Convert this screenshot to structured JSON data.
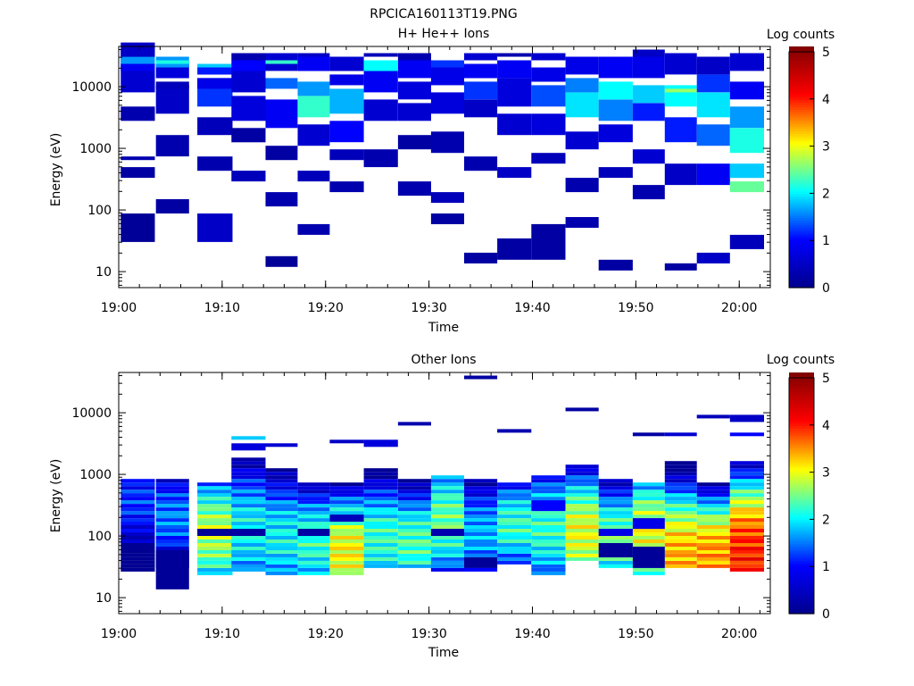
{
  "figure_title": "RPCICA160113T19.PNG",
  "colors": {
    "colormap": [
      "#00008c",
      "#0000ff",
      "#00ffff",
      "#ffff00",
      "#ff0000",
      "#7f0000"
    ]
  },
  "chart_data": [
    {
      "type": "heatmap",
      "title": "H+ He++ Ions",
      "xlabel": "Time",
      "ylabel": "Energy (eV)",
      "x_tick_labels": [
        "19:00",
        "19:10",
        "19:20",
        "19:30",
        "19:40",
        "19:50",
        "20:00"
      ],
      "x_tick_minutes": [
        0,
        10,
        20,
        30,
        40,
        50,
        60
      ],
      "xlim_minutes": [
        0,
        63
      ],
      "y_scale": "log",
      "ylim": [
        5.5,
        45000
      ],
      "y_tick_labels": [
        "10",
        "100",
        "1000",
        "10000"
      ],
      "y_tick_values": [
        10,
        100,
        1000,
        10000
      ],
      "colorbar": {
        "label": "Log counts",
        "range": [
          0,
          5
        ],
        "tick_labels": [
          "0",
          "1",
          "2",
          "3",
          "4",
          "5"
        ]
      },
      "time_bins_minutes": [
        [
          0.2,
          3.5
        ],
        [
          3.6,
          6.8
        ],
        [
          7.6,
          11.0
        ],
        [
          10.9,
          14.2
        ],
        [
          14.2,
          17.3
        ],
        [
          17.3,
          20.4
        ],
        [
          20.4,
          23.7
        ],
        [
          23.7,
          27.0
        ],
        [
          27.0,
          30.2
        ],
        [
          30.2,
          33.4
        ],
        [
          33.4,
          36.6
        ],
        [
          36.6,
          39.9
        ],
        [
          39.9,
          43.2
        ],
        [
          43.2,
          46.4
        ],
        [
          46.4,
          49.7
        ],
        [
          49.7,
          52.8
        ],
        [
          52.8,
          55.9
        ],
        [
          55.9,
          59.1
        ],
        [
          59.1,
          62.4
        ]
      ],
      "energy_range_eV": [
        8,
        40000
      ],
      "energy_bins": 64,
      "cells": [
        [
          0,
          10,
          8,
          0.1
        ],
        [
          0,
          28,
          3,
          0.2
        ],
        [
          0,
          44,
          4,
          0.3
        ],
        [
          0,
          52,
          8,
          0.6
        ],
        [
          0,
          58,
          6,
          0.9
        ],
        [
          0,
          60,
          2,
          1.6
        ],
        [
          0,
          62,
          4,
          0.5
        ],
        [
          0,
          33,
          1,
          0.3
        ],
        [
          1,
          18,
          4,
          0.2
        ],
        [
          1,
          34,
          6,
          0.3
        ],
        [
          1,
          46,
          8,
          0.5
        ],
        [
          1,
          56,
          4,
          0.7
        ],
        [
          1,
          59,
          3,
          1.6
        ],
        [
          1,
          60,
          1,
          2.1
        ],
        [
          1,
          53,
          2,
          0.4
        ],
        [
          2,
          10,
          8,
          0.5
        ],
        [
          2,
          30,
          4,
          0.3
        ],
        [
          2,
          40,
          5,
          0.4
        ],
        [
          2,
          48,
          8,
          1.2
        ],
        [
          2,
          53,
          3,
          0.8
        ],
        [
          2,
          57,
          2,
          1.1
        ],
        [
          2,
          59,
          1,
          1.8
        ],
        [
          3,
          27,
          3,
          0.4
        ],
        [
          3,
          38,
          4,
          0.2
        ],
        [
          3,
          44,
          7,
          0.7
        ],
        [
          3,
          52,
          6,
          0.6
        ],
        [
          3,
          58,
          3,
          1.0
        ],
        [
          3,
          61,
          2,
          0.3
        ],
        [
          4,
          3,
          3,
          0.1
        ],
        [
          4,
          20,
          4,
          0.3
        ],
        [
          4,
          33,
          4,
          0.2
        ],
        [
          4,
          42,
          8,
          0.9
        ],
        [
          4,
          53,
          3,
          1.4
        ],
        [
          4,
          58,
          5,
          0.6
        ],
        [
          4,
          60,
          1,
          2.2
        ],
        [
          5,
          12,
          3,
          0.3
        ],
        [
          5,
          27,
          3,
          0.4
        ],
        [
          5,
          37,
          6,
          0.6
        ],
        [
          5,
          45,
          6,
          2.2
        ],
        [
          5,
          51,
          4,
          1.6
        ],
        [
          5,
          58,
          4,
          0.9
        ],
        [
          5,
          62,
          1,
          0.5
        ],
        [
          6,
          24,
          3,
          0.3
        ],
        [
          6,
          33,
          3,
          0.4
        ],
        [
          6,
          38,
          6,
          1.0
        ],
        [
          6,
          46,
          7,
          1.7
        ],
        [
          6,
          54,
          3,
          0.8
        ],
        [
          6,
          58,
          4,
          0.6
        ],
        [
          7,
          31,
          5,
          0.3
        ],
        [
          7,
          44,
          6,
          0.6
        ],
        [
          7,
          52,
          6,
          0.9
        ],
        [
          7,
          58,
          3,
          2.0
        ],
        [
          7,
          62,
          1,
          0.4
        ],
        [
          8,
          23,
          4,
          0.3
        ],
        [
          8,
          36,
          4,
          0.2
        ],
        [
          8,
          44,
          5,
          0.6
        ],
        [
          8,
          50,
          5,
          0.7
        ],
        [
          8,
          56,
          5,
          0.9
        ],
        [
          8,
          61,
          2,
          0.3
        ],
        [
          9,
          15,
          3,
          0.2
        ],
        [
          9,
          21,
          3,
          0.4
        ],
        [
          9,
          35,
          6,
          0.3
        ],
        [
          9,
          46,
          6,
          0.7
        ],
        [
          9,
          54,
          5,
          0.8
        ],
        [
          9,
          59,
          2,
          1.2
        ],
        [
          10,
          4,
          3,
          0.2
        ],
        [
          10,
          30,
          4,
          0.3
        ],
        [
          10,
          45,
          5,
          0.5
        ],
        [
          10,
          50,
          5,
          1.2
        ],
        [
          10,
          56,
          4,
          0.9
        ],
        [
          10,
          61,
          2,
          0.6
        ],
        [
          11,
          5,
          6,
          0.2
        ],
        [
          11,
          28,
          3,
          0.5
        ],
        [
          11,
          40,
          6,
          0.6
        ],
        [
          11,
          48,
          8,
          0.7
        ],
        [
          11,
          56,
          5,
          0.9
        ],
        [
          11,
          62,
          1,
          0.3
        ],
        [
          12,
          5,
          10,
          0.2
        ],
        [
          12,
          32,
          3,
          0.4
        ],
        [
          12,
          40,
          6,
          0.7
        ],
        [
          12,
          48,
          6,
          1.3
        ],
        [
          12,
          55,
          4,
          0.8
        ],
        [
          12,
          61,
          2,
          0.6
        ],
        [
          13,
          14,
          3,
          0.3
        ],
        [
          13,
          24,
          4,
          0.3
        ],
        [
          13,
          36,
          5,
          0.6
        ],
        [
          13,
          45,
          7,
          1.9
        ],
        [
          13,
          52,
          4,
          1.5
        ],
        [
          13,
          57,
          5,
          0.8
        ],
        [
          14,
          2,
          3,
          0.2
        ],
        [
          14,
          28,
          3,
          0.4
        ],
        [
          14,
          38,
          5,
          0.7
        ],
        [
          14,
          44,
          6,
          1.5
        ],
        [
          14,
          50,
          5,
          2.0
        ],
        [
          14,
          56,
          6,
          0.9
        ],
        [
          15,
          22,
          4,
          0.3
        ],
        [
          15,
          32,
          4,
          0.6
        ],
        [
          15,
          44,
          5,
          1.1
        ],
        [
          15,
          49,
          5,
          1.8
        ],
        [
          15,
          56,
          6,
          0.8
        ],
        [
          15,
          62,
          2,
          0.5
        ],
        [
          16,
          2,
          2,
          0.2
        ],
        [
          16,
          26,
          6,
          0.5
        ],
        [
          16,
          38,
          7,
          1.1
        ],
        [
          16,
          48,
          6,
          2.0
        ],
        [
          16,
          52,
          1,
          2.6
        ],
        [
          16,
          57,
          6,
          0.6
        ],
        [
          17,
          4,
          3,
          0.5
        ],
        [
          17,
          26,
          6,
          0.9
        ],
        [
          17,
          37,
          6,
          1.4
        ],
        [
          17,
          45,
          7,
          1.9
        ],
        [
          17,
          52,
          5,
          1.2
        ],
        [
          17,
          57,
          5,
          0.5
        ],
        [
          18,
          8,
          4,
          0.4
        ],
        [
          18,
          24,
          3,
          2.4
        ],
        [
          18,
          28,
          4,
          1.8
        ],
        [
          18,
          35,
          7,
          2.1
        ],
        [
          18,
          42,
          6,
          1.6
        ],
        [
          18,
          50,
          5,
          0.9
        ],
        [
          18,
          58,
          5,
          0.6
        ]
      ]
    },
    {
      "type": "heatmap",
      "title": "Other Ions",
      "xlabel": "Time",
      "ylabel": "Energy (eV)",
      "x_tick_labels": [
        "19:00",
        "19:10",
        "19:20",
        "19:30",
        "19:40",
        "19:50",
        "20:00"
      ],
      "x_tick_minutes": [
        0,
        10,
        20,
        30,
        40,
        50,
        60
      ],
      "xlim_minutes": [
        0,
        63
      ],
      "y_scale": "log",
      "ylim": [
        5.5,
        45000
      ],
      "y_tick_labels": [
        "10",
        "100",
        "1000",
        "10000"
      ],
      "y_tick_values": [
        10,
        100,
        1000,
        10000
      ],
      "colorbar": {
        "label": "Log counts",
        "range": [
          0,
          5
        ],
        "tick_labels": [
          "0",
          "1",
          "2",
          "3",
          "4",
          "5"
        ]
      },
      "time_bins_minutes": [
        [
          0.2,
          3.5
        ],
        [
          3.6,
          6.8
        ],
        [
          7.6,
          11.0
        ],
        [
          10.9,
          14.2
        ],
        [
          14.2,
          17.3
        ],
        [
          17.3,
          20.4
        ],
        [
          20.4,
          23.7
        ],
        [
          23.7,
          27.0
        ],
        [
          27.0,
          30.2
        ],
        [
          30.2,
          33.4
        ],
        [
          33.4,
          36.6
        ],
        [
          36.6,
          39.9
        ],
        [
          39.9,
          43.2
        ],
        [
          43.2,
          46.4
        ],
        [
          46.4,
          49.7
        ],
        [
          49.7,
          52.8
        ],
        [
          52.8,
          55.9
        ],
        [
          55.9,
          59.1
        ],
        [
          59.1,
          62.4
        ]
      ],
      "energy_range_eV": [
        8,
        40000
      ],
      "energy_bins": 64,
      "profiles": [
        {
          "top_eV": 850,
          "bottom_eV": 28,
          "peak_eV": 350,
          "peak_level": 1.2
        },
        {
          "top_eV": 850,
          "bottom_eV": 30,
          "peak_eV": 200,
          "peak_level": 1.5
        },
        {
          "top_eV": 720,
          "bottom_eV": 22,
          "peak_eV": 110,
          "peak_level": 2.7
        },
        {
          "top_eV": 1900,
          "bottom_eV": 25,
          "peak_eV": 120,
          "peak_level": 2.0
        },
        {
          "top_eV": 1300,
          "bottom_eV": 22,
          "peak_eV": 90,
          "peak_level": 2.0
        },
        {
          "top_eV": 700,
          "bottom_eV": 22,
          "peak_eV": 80,
          "peak_level": 2.2
        },
        {
          "top_eV": 700,
          "bottom_eV": 24,
          "peak_eV": 55,
          "peak_level": 3.0
        },
        {
          "top_eV": 1300,
          "bottom_eV": 32,
          "peak_eV": 90,
          "peak_level": 2.2
        },
        {
          "top_eV": 850,
          "bottom_eV": 30,
          "peak_eV": 80,
          "peak_level": 2.3
        },
        {
          "top_eV": 1000,
          "bottom_eV": 25,
          "peak_eV": 180,
          "peak_level": 2.4
        },
        {
          "top_eV": 850,
          "bottom_eV": 25,
          "peak_eV": 110,
          "peak_level": 1.7
        },
        {
          "top_eV": 700,
          "bottom_eV": 35,
          "peak_eV": 150,
          "peak_level": 2.2
        },
        {
          "top_eV": 1000,
          "bottom_eV": 22,
          "peak_eV": 130,
          "peak_level": 2.2
        },
        {
          "top_eV": 1400,
          "bottom_eV": 40,
          "peak_eV": 110,
          "peak_level": 2.9
        },
        {
          "top_eV": 800,
          "bottom_eV": 30,
          "peak_eV": 90,
          "peak_level": 2.4
        },
        {
          "top_eV": 750,
          "bottom_eV": 22,
          "peak_eV": 110,
          "peak_level": 2.9
        },
        {
          "top_eV": 1600,
          "bottom_eV": 30,
          "peak_eV": 45,
          "peak_level": 3.3
        },
        {
          "top_eV": 750,
          "bottom_eV": 30,
          "peak_eV": 50,
          "peak_level": 3.4
        },
        {
          "top_eV": 1600,
          "bottom_eV": 28,
          "peak_eV": 50,
          "peak_level": 3.9
        }
      ],
      "extra_cells": [
        [
          1,
          4,
          11,
          0.1
        ],
        [
          2,
          19,
          2,
          0.1
        ],
        [
          3,
          19,
          2,
          0.2
        ],
        [
          5,
          19,
          2,
          0.2
        ],
        [
          6,
          23,
          2,
          0.4
        ],
        [
          9,
          19,
          2,
          0.3
        ],
        [
          10,
          10,
          3,
          0.1
        ],
        [
          12,
          26,
          3,
          1.0
        ],
        [
          14,
          19,
          2,
          0.8
        ],
        [
          14,
          13,
          4,
          0.1
        ],
        [
          15,
          10,
          6,
          0.1
        ],
        [
          15,
          21,
          3,
          0.8
        ],
        [
          8,
          50,
          1,
          0.3
        ],
        [
          10,
          63,
          1,
          0.2
        ],
        [
          11,
          48,
          1,
          0.3
        ],
        [
          13,
          54,
          1,
          0.2
        ],
        [
          15,
          47,
          1,
          0.2
        ],
        [
          16,
          47,
          1,
          0.6
        ],
        [
          17,
          52,
          1,
          0.4
        ],
        [
          18,
          51,
          2,
          0.5
        ],
        [
          18,
          47,
          1,
          1.0
        ],
        [
          3,
          43,
          2,
          0.7
        ],
        [
          4,
          44,
          1,
          0.6
        ],
        [
          6,
          45,
          1,
          0.5
        ],
        [
          7,
          44,
          2,
          0.7
        ],
        [
          3,
          46,
          1,
          1.8
        ]
      ]
    }
  ]
}
